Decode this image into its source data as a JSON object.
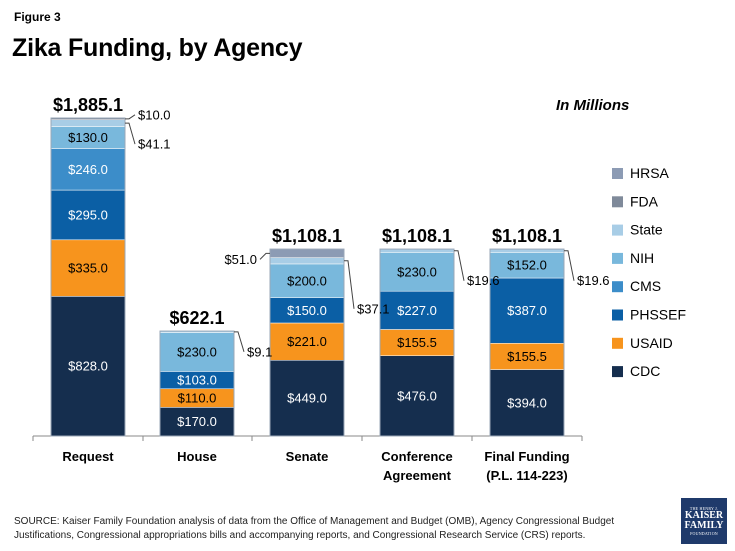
{
  "figure_label": "Figure 3",
  "units_label": "In Millions",
  "source_note": "SOURCE: Kaiser Family Foundation analysis of data from the Office of Management and Budget (OMB), Agency Congressional Budget Justifications, Congressional appropriations bills and accompanying reports, and Congressional Research Service (CRS) reports.",
  "logo": {
    "line1": "THE HENRY J.",
    "line2": "KAISER",
    "line3": "FAMILY",
    "line4": "FOUNDATION"
  },
  "colors": {
    "CDC": "#152e4e",
    "USAID": "#f7941d",
    "PHSSEF": "#0b5fa5",
    "CMS": "#3c8dc9",
    "NIH": "#79b8dc",
    "State": "#a8cde6",
    "FDA": "#7f8a9a",
    "HRSA": "#8c9bb4"
  },
  "chart_data": {
    "type": "bar",
    "stacked": true,
    "title": "Zika Funding, by Agency",
    "ylabel": "",
    "xlabel": "",
    "ylim": [
      0,
      1885.1
    ],
    "categories": [
      "Request",
      "House",
      "Senate",
      "Conference Agreement",
      "Final Funding (P.L. 114-223)"
    ],
    "category_lines": [
      [
        "Request"
      ],
      [
        "House"
      ],
      [
        "Senate"
      ],
      [
        "Conference",
        "Agreement"
      ],
      [
        "Final Funding",
        "(P.L. 114-223)"
      ]
    ],
    "totals": [
      1885.1,
      622.1,
      1108.1,
      1108.1,
      1108.1
    ],
    "total_labels": [
      "$1,885.1",
      "$622.1",
      "$1,108.1",
      "$1,108.1",
      "$1,108.1"
    ],
    "legend_order": [
      "HRSA",
      "FDA",
      "State",
      "NIH",
      "CMS",
      "PHSSEF",
      "USAID",
      "CDC"
    ],
    "series": [
      {
        "name": "CDC",
        "values": [
          828.0,
          170.0,
          449.0,
          476.0,
          394.0
        ]
      },
      {
        "name": "USAID",
        "values": [
          335.0,
          110.0,
          221.0,
          155.5,
          155.5
        ]
      },
      {
        "name": "PHSSEF",
        "values": [
          295.0,
          103.0,
          150.0,
          227.0,
          387.0
        ]
      },
      {
        "name": "CMS",
        "values": [
          246.0,
          0,
          0,
          0,
          0
        ]
      },
      {
        "name": "NIH",
        "values": [
          130.0,
          230.0,
          200.0,
          230.0,
          152.0
        ]
      },
      {
        "name": "State",
        "values": [
          41.1,
          9.1,
          37.1,
          19.6,
          19.6
        ]
      },
      {
        "name": "FDA",
        "values": [
          10.0,
          0,
          0,
          0,
          0
        ]
      },
      {
        "name": "HRSA",
        "values": [
          0,
          0,
          51.0,
          0,
          0
        ]
      }
    ],
    "data_labels": [
      {
        "category": 0,
        "series": "CDC",
        "text": "$828.0"
      },
      {
        "category": 0,
        "series": "USAID",
        "text": "$335.0"
      },
      {
        "category": 0,
        "series": "PHSSEF",
        "text": "$295.0"
      },
      {
        "category": 0,
        "series": "CMS",
        "text": "$246.0"
      },
      {
        "category": 0,
        "series": "NIH",
        "text": "$130.0"
      },
      {
        "category": 1,
        "series": "CDC",
        "text": "$170.0"
      },
      {
        "category": 1,
        "series": "USAID",
        "text": "$110.0"
      },
      {
        "category": 1,
        "series": "PHSSEF",
        "text": "$103.0"
      },
      {
        "category": 1,
        "series": "NIH",
        "text": "$230.0"
      },
      {
        "category": 2,
        "series": "CDC",
        "text": "$449.0"
      },
      {
        "category": 2,
        "series": "USAID",
        "text": "$221.0"
      },
      {
        "category": 2,
        "series": "PHSSEF",
        "text": "$150.0"
      },
      {
        "category": 2,
        "series": "NIH",
        "text": "$200.0"
      },
      {
        "category": 3,
        "series": "CDC",
        "text": "$476.0"
      },
      {
        "category": 3,
        "series": "USAID",
        "text": "$155.5"
      },
      {
        "category": 3,
        "series": "PHSSEF",
        "text": "$227.0"
      },
      {
        "category": 3,
        "series": "NIH",
        "text": "$230.0"
      },
      {
        "category": 4,
        "series": "CDC",
        "text": "$394.0"
      },
      {
        "category": 4,
        "series": "USAID",
        "text": "$155.5"
      },
      {
        "category": 4,
        "series": "PHSSEF",
        "text": "$387.0"
      },
      {
        "category": 4,
        "series": "NIH",
        "text": "$152.0"
      }
    ],
    "callouts": [
      {
        "category": 0,
        "series": "FDA",
        "text": "$10.0",
        "side": "right"
      },
      {
        "category": 0,
        "series": "State",
        "text": "$41.1",
        "side": "right"
      },
      {
        "category": 1,
        "series": "State",
        "text": "$9.1",
        "side": "right"
      },
      {
        "category": 2,
        "series": "HRSA",
        "text": "$51.0",
        "side": "left"
      },
      {
        "category": 2,
        "series": "State",
        "text": "$37.1",
        "side": "right"
      },
      {
        "category": 3,
        "series": "State",
        "text": "$19.6",
        "side": "right"
      },
      {
        "category": 4,
        "series": "State",
        "text": "$19.6",
        "side": "right"
      }
    ]
  }
}
